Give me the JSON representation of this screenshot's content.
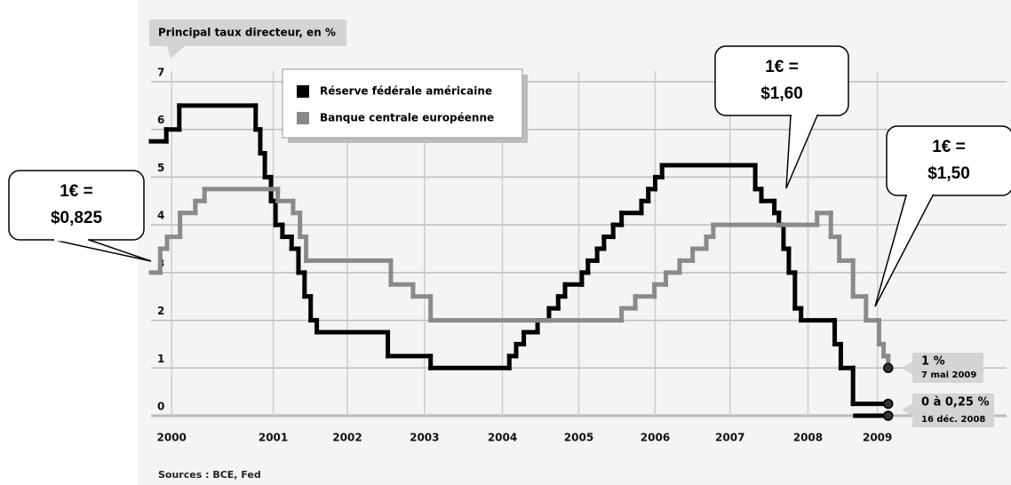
{
  "chart_data": {
    "type": "step-line",
    "title": "Principal taux directeur, en %",
    "source": "Sources : BCE, Fed",
    "xlim": [
      2000,
      2011.2
    ],
    "xticks": [
      {
        "value": 2000.27,
        "label": "2000"
      },
      {
        "value": 2001.6,
        "label": "2001"
      },
      {
        "value": 2002.57,
        "label": "2002"
      },
      {
        "value": 2003.58,
        "label": "2003"
      },
      {
        "value": 2004.6,
        "label": "2004"
      },
      {
        "value": 2005.6,
        "label": "2005"
      },
      {
        "value": 2006.6,
        "label": "2006"
      },
      {
        "value": 2007.58,
        "label": "2007"
      },
      {
        "value": 2008.6,
        "label": "2008"
      },
      {
        "value": 2009.51,
        "label": "2009"
      }
    ],
    "ylim": [
      0,
      7
    ],
    "yticks": [
      0,
      1,
      2,
      3,
      4,
      5,
      6,
      7
    ],
    "grid": true,
    "series": [
      {
        "name": "Réserve fédérale américaine",
        "color": "#000000",
        "x": [
          2000.0,
          2000.2,
          2000.37,
          2001.37,
          2001.43,
          2001.49,
          2001.57,
          2001.63,
          2001.72,
          2001.84,
          2001.93,
          2002.01,
          2002.09,
          2002.17,
          2003.1,
          2003.66,
          2004.69,
          2004.78,
          2004.88,
          2005.06,
          2005.21,
          2005.33,
          2005.42,
          2005.64,
          2005.72,
          2005.84,
          2005.93,
          2006.05,
          2006.16,
          2006.42,
          2006.51,
          2006.6,
          2006.69,
          2007.91,
          2007.99,
          2008.16,
          2008.22,
          2008.28,
          2008.35,
          2008.43,
          2008.51,
          2008.95,
          2009.03,
          2009.19,
          2009.65
        ],
        "values": [
          5.75,
          6,
          6.5,
          6,
          5.5,
          5,
          4.5,
          4,
          3.75,
          3.5,
          3,
          2.5,
          2,
          1.75,
          1.25,
          1,
          1.25,
          1.5,
          1.75,
          2,
          2.25,
          2.5,
          2.75,
          3,
          3.25,
          3.5,
          3.75,
          4,
          4.25,
          4.5,
          4.75,
          5,
          5.25,
          4.75,
          4.5,
          4.25,
          4,
          3.5,
          3,
          2.25,
          2,
          1.5,
          1,
          0.25,
          0.25
        ]
      },
      {
        "name": "Banque centrale européenne",
        "color": "#8a8a8a",
        "x": [
          2000.0,
          2000.12,
          2000.21,
          2000.38,
          2000.58,
          2000.7,
          2001.66,
          2001.86,
          2001.95,
          2002.03,
          2003.14,
          2003.43,
          2003.66,
          2006.16,
          2006.34,
          2006.59,
          2006.74,
          2006.92,
          2007.09,
          2007.27,
          2007.36,
          2008.72,
          2008.9,
          2009.01,
          2009.19,
          2009.36,
          2009.53,
          2009.59,
          2009.65
        ],
        "values": [
          3,
          3.5,
          3.75,
          4.25,
          4.5,
          4.75,
          4.5,
          4.25,
          3.75,
          3.25,
          2.75,
          2.5,
          2,
          2.25,
          2.5,
          2.75,
          3,
          3.25,
          3.5,
          3.75,
          4,
          4.25,
          3.75,
          3.25,
          2.5,
          2,
          1.5,
          1.25,
          1
        ]
      }
    ],
    "end_labels": [
      {
        "text": "1 %",
        "subtext": "7 mai 2009"
      },
      {
        "text": "0 à 0,25 %",
        "subtext": "16 déc. 2008",
        "low": 0,
        "high": 0.25
      }
    ],
    "callouts": [
      {
        "lines": [
          "1€ =",
          "$0,825"
        ]
      },
      {
        "lines": [
          "1€ =",
          "$1,60"
        ]
      },
      {
        "lines": [
          "1€ =",
          "$1,50"
        ]
      }
    ]
  }
}
